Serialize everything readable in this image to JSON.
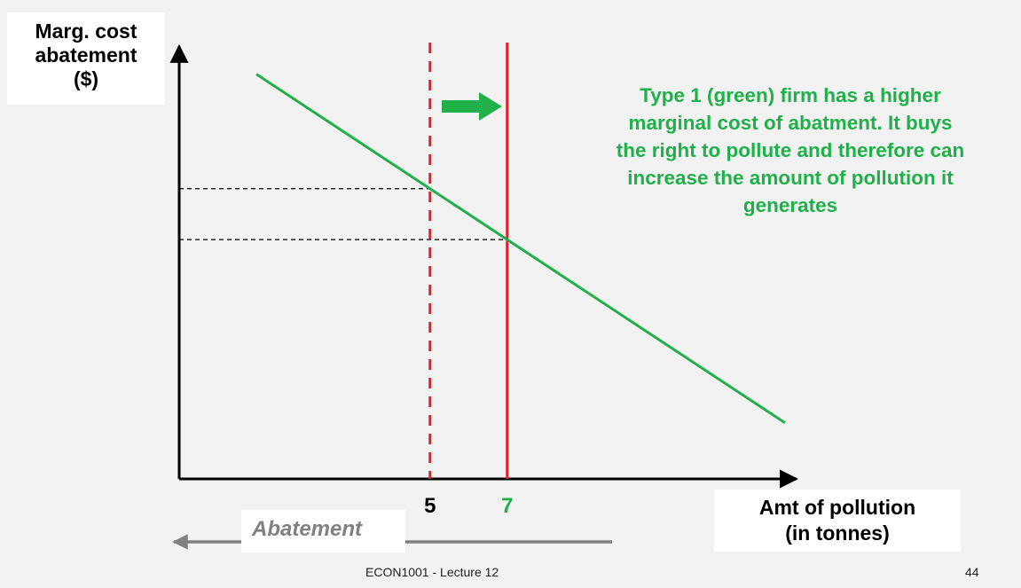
{
  "chart_data": {
    "type": "line",
    "ylabel_lines": [
      "Marg. cost",
      "abatement",
      "($)"
    ],
    "xlabel_lines": [
      "Amt of pollution",
      "(in tonnes)"
    ],
    "tick_labels": [
      {
        "value": 5,
        "label": "5",
        "color": "#000000"
      },
      {
        "value": 7,
        "label": "7",
        "color": "#1fb04a"
      }
    ],
    "series": [
      {
        "color": "#1fb04a",
        "points": [
          [
            0.5,
            10.1
          ],
          [
            14.2,
            1.4
          ]
        ]
      }
    ],
    "reference_lines": [
      {
        "x": 5,
        "style": "dashed",
        "color": "#e8202a"
      },
      {
        "x": 7,
        "style": "solid",
        "color": "#e8202a"
      }
    ],
    "xlim": [
      -1.5,
      14.5
    ],
    "ylim": [
      0,
      10.8
    ],
    "grid": false
  },
  "annotation_lines": [
    "Type 1 (green) firm has a higher",
    "marginal cost of abatment. It buys",
    "the right to pollute and therefore can",
    "increase the amount of pollution it",
    "generates"
  ],
  "abatement_label": "Abatement",
  "footer": "ECON1001 - Lecture 12",
  "page_number": "44",
  "colors": {
    "green": "#1fb04a",
    "red": "#e8202a",
    "gray": "#808080"
  }
}
